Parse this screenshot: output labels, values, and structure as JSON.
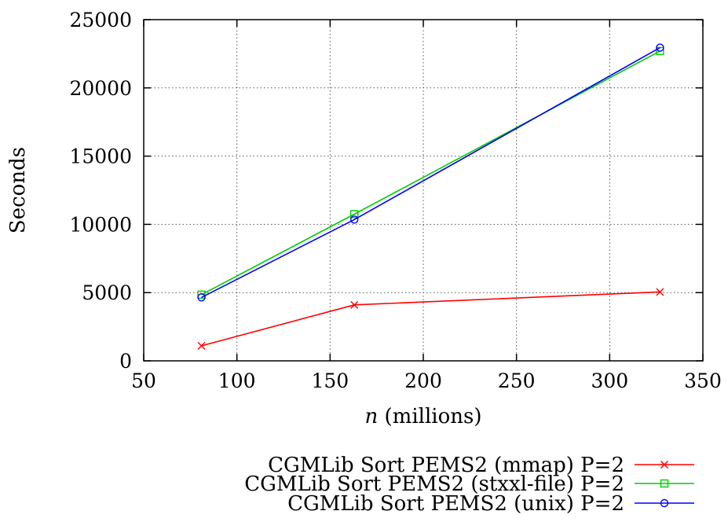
{
  "chart_data": {
    "type": "line",
    "xlabel_italic": "n",
    "xlabel_rest": " (millions)",
    "ylabel": "Seconds",
    "xlim": [
      50,
      350
    ],
    "ylim": [
      0,
      25000
    ],
    "xticks": [
      50,
      100,
      150,
      200,
      250,
      300,
      350
    ],
    "yticks": [
      0,
      5000,
      10000,
      15000,
      20000,
      25000
    ],
    "grid": true,
    "legend_position": "bottom-right, below plot",
    "series": [
      {
        "name": "CGMLib Sort PEMS2 (mmap) P=2",
        "color": "#ff0000",
        "marker": "cross",
        "x": [
          81,
          163,
          327
        ],
        "y": [
          1100,
          4100,
          5050
        ]
      },
      {
        "name": "CGMLib Sort PEMS2 (stxxl-file) P=2",
        "color": "#00cc00",
        "marker": "square",
        "x": [
          81,
          163,
          327
        ],
        "y": [
          4850,
          10750,
          22700
        ]
      },
      {
        "name": "CGMLib Sort PEMS2 (unix) P=2",
        "color": "#0000ff",
        "marker": "circle",
        "x": [
          81,
          163,
          327
        ],
        "y": [
          4650,
          10350,
          22950
        ]
      }
    ]
  }
}
